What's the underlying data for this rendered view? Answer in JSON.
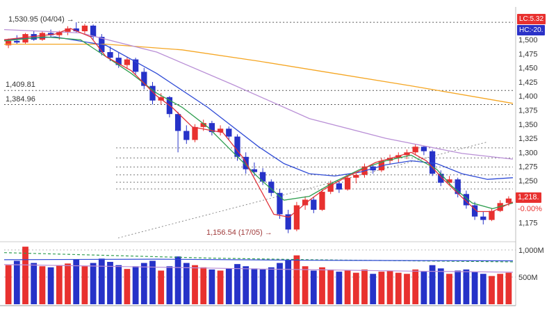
{
  "header": {
    "lc_badge": "LC:5.32",
    "hc_badge": "HC:-20."
  },
  "annotations": {
    "peak": {
      "text": "1,530.95 (04/04) →",
      "price": 1530.95
    },
    "level_1": {
      "text": "1,409.81",
      "price": 1409.81
    },
    "level_2": {
      "text": "1,384.96",
      "price": 1384.96
    },
    "low": {
      "text": "1,156.54 (17/05) →",
      "price": 1156.54
    }
  },
  "price_axis": {
    "ticks": [
      {
        "label": "1,500",
        "price": 1500
      },
      {
        "label": "1,475",
        "price": 1475
      },
      {
        "label": "1,450",
        "price": 1450
      },
      {
        "label": "1,425",
        "price": 1425
      },
      {
        "label": "1,400",
        "price": 1400
      },
      {
        "label": "1,375",
        "price": 1375
      },
      {
        "label": "1,350",
        "price": 1350
      },
      {
        "label": "1,325",
        "price": 1325
      },
      {
        "label": "1,300",
        "price": 1300
      },
      {
        "label": "1,275",
        "price": 1275
      },
      {
        "label": "1,250",
        "price": 1250
      },
      {
        "label": "1,175",
        "price": 1175
      }
    ],
    "current": {
      "label": "1,218.",
      "pct": "-0.00%",
      "price": 1218
    }
  },
  "volume_axis": {
    "ticks": [
      {
        "label": "1,000M",
        "value": 1000
      },
      {
        "label": "500M",
        "value": 500
      }
    ]
  },
  "colors": {
    "up": "#e8312f",
    "down": "#2632c8",
    "ma5": "#e03038",
    "ma10": "#2e9e4f",
    "ma20": "#2f4bd6",
    "ma60": "#b98fd6",
    "ma120": "#f5a623",
    "grid": "#888888",
    "axis_text": "#333333"
  },
  "chart_data": {
    "type": "candlestick+volume",
    "title": "",
    "ylim": [
      1145,
      1552
    ],
    "vol_ylim": [
      0,
      1100
    ],
    "candles": [
      [
        1490,
        1502,
        1485,
        1498
      ],
      [
        1498,
        1508,
        1492,
        1495
      ],
      [
        1495,
        1512,
        1493,
        1510
      ],
      [
        1510,
        1515,
        1498,
        1500
      ],
      [
        1500,
        1515,
        1498,
        1512
      ],
      [
        1512,
        1518,
        1505,
        1508
      ],
      [
        1508,
        1516,
        1500,
        1514
      ],
      [
        1514,
        1524,
        1508,
        1520
      ],
      [
        1520,
        1530.95,
        1512,
        1515
      ],
      [
        1515,
        1528,
        1510,
        1525
      ],
      [
        1525,
        1527,
        1500,
        1505
      ],
      [
        1505,
        1510,
        1472,
        1478
      ],
      [
        1478,
        1488,
        1462,
        1468
      ],
      [
        1468,
        1478,
        1450,
        1455
      ],
      [
        1455,
        1470,
        1448,
        1465
      ],
      [
        1465,
        1468,
        1438,
        1443
      ],
      [
        1443,
        1450,
        1412,
        1418
      ],
      [
        1418,
        1425,
        1385,
        1392
      ],
      [
        1392,
        1405,
        1385,
        1398
      ],
      [
        1398,
        1400,
        1362,
        1368
      ],
      [
        1368,
        1372,
        1300,
        1338
      ],
      [
        1338,
        1348,
        1315,
        1322
      ],
      [
        1322,
        1350,
        1318,
        1345
      ],
      [
        1345,
        1358,
        1338,
        1352
      ],
      [
        1352,
        1356,
        1330,
        1336
      ],
      [
        1336,
        1348,
        1330,
        1342
      ],
      [
        1342,
        1346,
        1322,
        1328
      ],
      [
        1328,
        1332,
        1285,
        1292
      ],
      [
        1292,
        1300,
        1262,
        1270
      ],
      [
        1270,
        1282,
        1258,
        1265
      ],
      [
        1265,
        1272,
        1242,
        1248
      ],
      [
        1248,
        1252,
        1222,
        1228
      ],
      [
        1228,
        1235,
        1182,
        1190
      ],
      [
        1190,
        1198,
        1156.54,
        1163
      ],
      [
        1163,
        1212,
        1160,
        1206
      ],
      [
        1206,
        1222,
        1198,
        1216
      ],
      [
        1216,
        1220,
        1192,
        1198
      ],
      [
        1198,
        1235,
        1196,
        1230
      ],
      [
        1230,
        1250,
        1226,
        1245
      ],
      [
        1245,
        1248,
        1228,
        1234
      ],
      [
        1234,
        1260,
        1232,
        1255
      ],
      [
        1255,
        1265,
        1245,
        1260
      ],
      [
        1260,
        1280,
        1255,
        1275
      ],
      [
        1275,
        1278,
        1262,
        1268
      ],
      [
        1268,
        1290,
        1265,
        1285
      ],
      [
        1285,
        1296,
        1278,
        1290
      ],
      [
        1290,
        1300,
        1282,
        1295
      ],
      [
        1295,
        1305,
        1288,
        1300
      ],
      [
        1300,
        1315,
        1295,
        1310
      ],
      [
        1310,
        1312,
        1295,
        1302
      ],
      [
        1302,
        1305,
        1258,
        1262
      ],
      [
        1262,
        1268,
        1240,
        1246
      ],
      [
        1246,
        1258,
        1242,
        1252
      ],
      [
        1252,
        1255,
        1220,
        1226
      ],
      [
        1226,
        1232,
        1200,
        1206
      ],
      [
        1206,
        1212,
        1180,
        1186
      ],
      [
        1186,
        1195,
        1172,
        1180
      ],
      [
        1180,
        1200,
        1178,
        1196
      ],
      [
        1196,
        1215,
        1194,
        1210
      ],
      [
        1210,
        1222,
        1205,
        1218
      ]
    ],
    "volumes_m": [
      720,
      800,
      1060,
      760,
      700,
      680,
      720,
      750,
      820,
      700,
      760,
      840,
      780,
      720,
      650,
      700,
      760,
      800,
      620,
      700,
      880,
      760,
      720,
      680,
      640,
      620,
      660,
      740,
      700,
      660,
      640,
      680,
      760,
      820,
      900,
      700,
      620,
      680,
      640,
      600,
      620,
      580,
      640,
      560,
      600,
      620,
      580,
      560,
      640,
      600,
      720,
      660,
      560,
      620,
      640,
      600,
      560,
      520,
      560,
      580
    ],
    "overlays_price": [
      {
        "name": "ma120",
        "color_key": "ma120",
        "dashed": false,
        "points": [
          [
            0,
            1492
          ],
          [
            0.2,
            1492
          ],
          [
            0.35,
            1482
          ],
          [
            0.5,
            1462
          ],
          [
            0.65,
            1440
          ],
          [
            0.8,
            1418
          ],
          [
            1,
            1387
          ]
        ]
      },
      {
        "name": "ma60",
        "color_key": "ma60",
        "dashed": false,
        "points": [
          [
            0,
            1518
          ],
          [
            0.15,
            1512
          ],
          [
            0.3,
            1478
          ],
          [
            0.45,
            1420
          ],
          [
            0.6,
            1360
          ],
          [
            0.75,
            1325
          ],
          [
            0.9,
            1298
          ],
          [
            1,
            1288
          ]
        ]
      },
      {
        "name": "ma20",
        "color_key": "ma20",
        "dashed": false,
        "points": [
          [
            0,
            1500
          ],
          [
            0.1,
            1505
          ],
          [
            0.2,
            1490
          ],
          [
            0.3,
            1440
          ],
          [
            0.4,
            1380
          ],
          [
            0.5,
            1310
          ],
          [
            0.55,
            1280
          ],
          [
            0.6,
            1262
          ],
          [
            0.65,
            1258
          ],
          [
            0.7,
            1265
          ],
          [
            0.75,
            1278
          ],
          [
            0.8,
            1285
          ],
          [
            0.85,
            1280
          ],
          [
            0.9,
            1262
          ],
          [
            0.95,
            1252
          ],
          [
            1,
            1255
          ]
        ]
      },
      {
        "name": "ma10",
        "color_key": "ma10",
        "dashed": false,
        "points": [
          [
            0,
            1498
          ],
          [
            0.08,
            1505
          ],
          [
            0.15,
            1500
          ],
          [
            0.2,
            1470
          ],
          [
            0.25,
            1440
          ],
          [
            0.3,
            1405
          ],
          [
            0.35,
            1380
          ],
          [
            0.4,
            1345
          ],
          [
            0.45,
            1300
          ],
          [
            0.5,
            1255
          ],
          [
            0.55,
            1215
          ],
          [
            0.6,
            1222
          ],
          [
            0.65,
            1248
          ],
          [
            0.7,
            1270
          ],
          [
            0.75,
            1285
          ],
          [
            0.8,
            1295
          ],
          [
            0.85,
            1270
          ],
          [
            0.88,
            1240
          ],
          [
            0.92,
            1210
          ],
          [
            0.96,
            1200
          ],
          [
            1,
            1210
          ]
        ]
      },
      {
        "name": "ma5",
        "color_key": "ma5",
        "dashed": false,
        "points": [
          [
            0,
            1500
          ],
          [
            0.05,
            1505
          ],
          [
            0.1,
            1510
          ],
          [
            0.13,
            1520
          ],
          [
            0.17,
            1505
          ],
          [
            0.2,
            1470
          ],
          [
            0.25,
            1445
          ],
          [
            0.3,
            1400
          ],
          [
            0.33,
            1380
          ],
          [
            0.37,
            1345
          ],
          [
            0.4,
            1340
          ],
          [
            0.43,
            1335
          ],
          [
            0.47,
            1290
          ],
          [
            0.5,
            1240
          ],
          [
            0.53,
            1190
          ],
          [
            0.56,
            1185
          ],
          [
            0.6,
            1215
          ],
          [
            0.63,
            1235
          ],
          [
            0.67,
            1255
          ],
          [
            0.7,
            1268
          ],
          [
            0.73,
            1282
          ],
          [
            0.77,
            1292
          ],
          [
            0.8,
            1300
          ],
          [
            0.83,
            1285
          ],
          [
            0.86,
            1255
          ],
          [
            0.9,
            1220
          ],
          [
            0.93,
            1195
          ],
          [
            0.96,
            1195
          ],
          [
            1,
            1212
          ]
        ]
      }
    ],
    "overlays_volume": [
      {
        "name": "vol-ma-long",
        "color_key": "ma10",
        "dashed": true,
        "points": [
          [
            0,
            950
          ],
          [
            0.2,
            900
          ],
          [
            0.4,
            850
          ],
          [
            0.6,
            820
          ],
          [
            0.8,
            800
          ],
          [
            1,
            780
          ]
        ]
      },
      {
        "name": "vol-ma-mid",
        "color_key": "ma20",
        "dashed": false,
        "points": [
          [
            0,
            820
          ],
          [
            0.3,
            830
          ],
          [
            0.6,
            810
          ],
          [
            1,
            800
          ]
        ]
      },
      {
        "name": "vol-ma-short",
        "color_key": "ma60",
        "dashed": false,
        "points": [
          [
            0,
            730
          ],
          [
            0.2,
            700
          ],
          [
            0.5,
            650
          ],
          [
            0.8,
            610
          ],
          [
            1,
            590
          ]
        ]
      }
    ],
    "levels": [
      {
        "price": 1530.95,
        "start": 0.145,
        "color": "#555555"
      },
      {
        "price": 1409.81,
        "start": 0,
        "color": "#555555"
      },
      {
        "price": 1384.96,
        "start": 0,
        "color": "#555555"
      },
      {
        "price": 1308,
        "start": 0.22,
        "color": "#777777"
      },
      {
        "price": 1290,
        "start": 0.22,
        "color": "#777777"
      },
      {
        "price": 1274,
        "start": 0.22,
        "color": "#777777"
      },
      {
        "price": 1260,
        "start": 0.22,
        "color": "#777777"
      },
      {
        "price": 1247,
        "start": 0.22,
        "color": "#777777"
      },
      {
        "price": 1235,
        "start": 0.22,
        "color": "#777777"
      }
    ],
    "trendline": {
      "from": [
        0.224,
        1148
      ],
      "to": [
        0.948,
        1318
      ],
      "color": "#888888"
    }
  }
}
